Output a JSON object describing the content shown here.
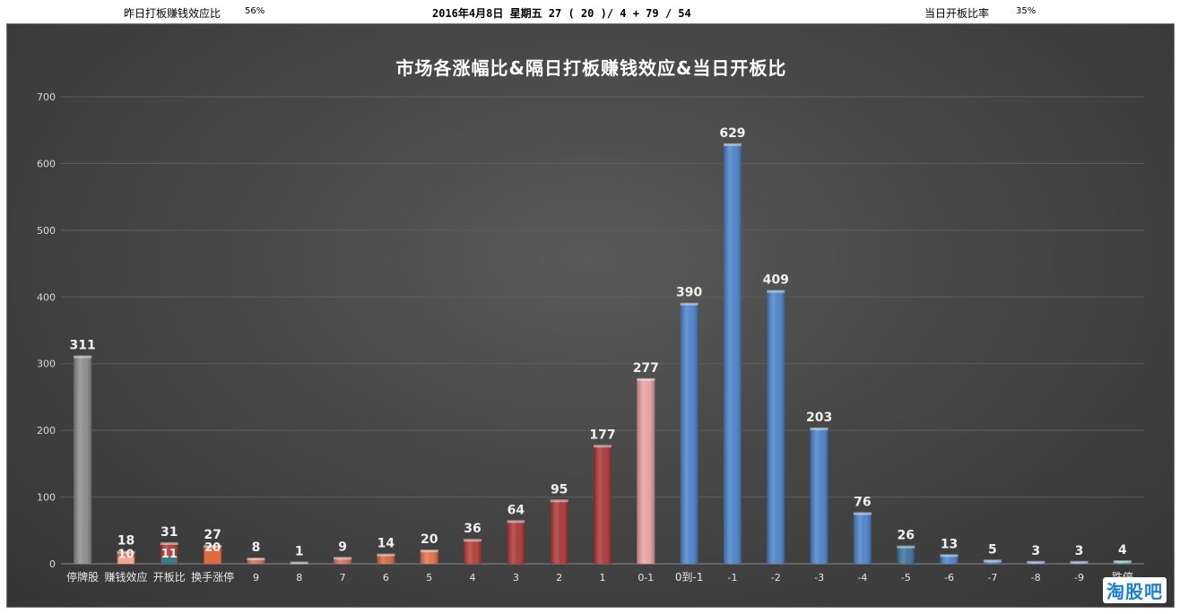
{
  "header": {
    "left_label": "昨日打板赚钱效应比",
    "left_value": "56%",
    "center_text": "2016年4月8日 星期五  27 ( 20 )/ 4  + 79 / 54",
    "right_label": "当日开板比率",
    "right_value": "35%"
  },
  "watermark": "淘股吧",
  "chart_data": {
    "type": "bar",
    "title": "市场各涨幅比&隔日打板赚钱效应&当日开板比",
    "xlabel": "",
    "ylabel": "",
    "ylim": [
      0,
      700
    ],
    "yticks": [
      "0",
      "100",
      "200",
      "300",
      "400",
      "500",
      "600",
      "700"
    ],
    "grid": true,
    "legend": "none",
    "categories": [
      "停牌股",
      "赚钱效应",
      "开板比",
      "换手涨停",
      "9",
      "8",
      "7",
      "6",
      "5",
      "4",
      "3",
      "2",
      "1",
      "0-1",
      "0到-1",
      "-1",
      "-2",
      "-3",
      "-4",
      "-5",
      "-6",
      "-7",
      "-8",
      "-9",
      "跌停"
    ],
    "series": [
      {
        "values": [
          311,
          18,
          31,
          27,
          8,
          1,
          9,
          14,
          20,
          36,
          64,
          95,
          177,
          277,
          390,
          629,
          409,
          203,
          76,
          26,
          13,
          5,
          3,
          3,
          4
        ],
        "colors": [
          "#8a8a8a",
          "#d9715a",
          "#a83a36",
          "#e06a42",
          "#d06c5a",
          "#8a8a8a",
          "#d0705c",
          "#d0683e",
          "#e07048",
          "#b03a34",
          "#a83434",
          "#a83434",
          "#a83434",
          "#e8a0a0",
          "#4a80c8",
          "#4a80c8",
          "#4a80c8",
          "#4a80c8",
          "#4a80c8",
          "#3a6e9a",
          "#4a80c8",
          "#4a80c8",
          "#4a80c8",
          "#4a80c8",
          "#4aa0b0"
        ]
      },
      {
        "values": [
          null,
          10,
          11,
          20,
          null,
          null,
          null,
          null,
          null,
          null,
          null,
          null,
          null,
          null,
          null,
          null,
          null,
          null,
          null,
          null,
          null,
          null,
          null,
          null,
          null
        ],
        "colors": [
          null,
          "#f0a890",
          "#3a7a88",
          "#e06a42"
        ]
      }
    ]
  }
}
